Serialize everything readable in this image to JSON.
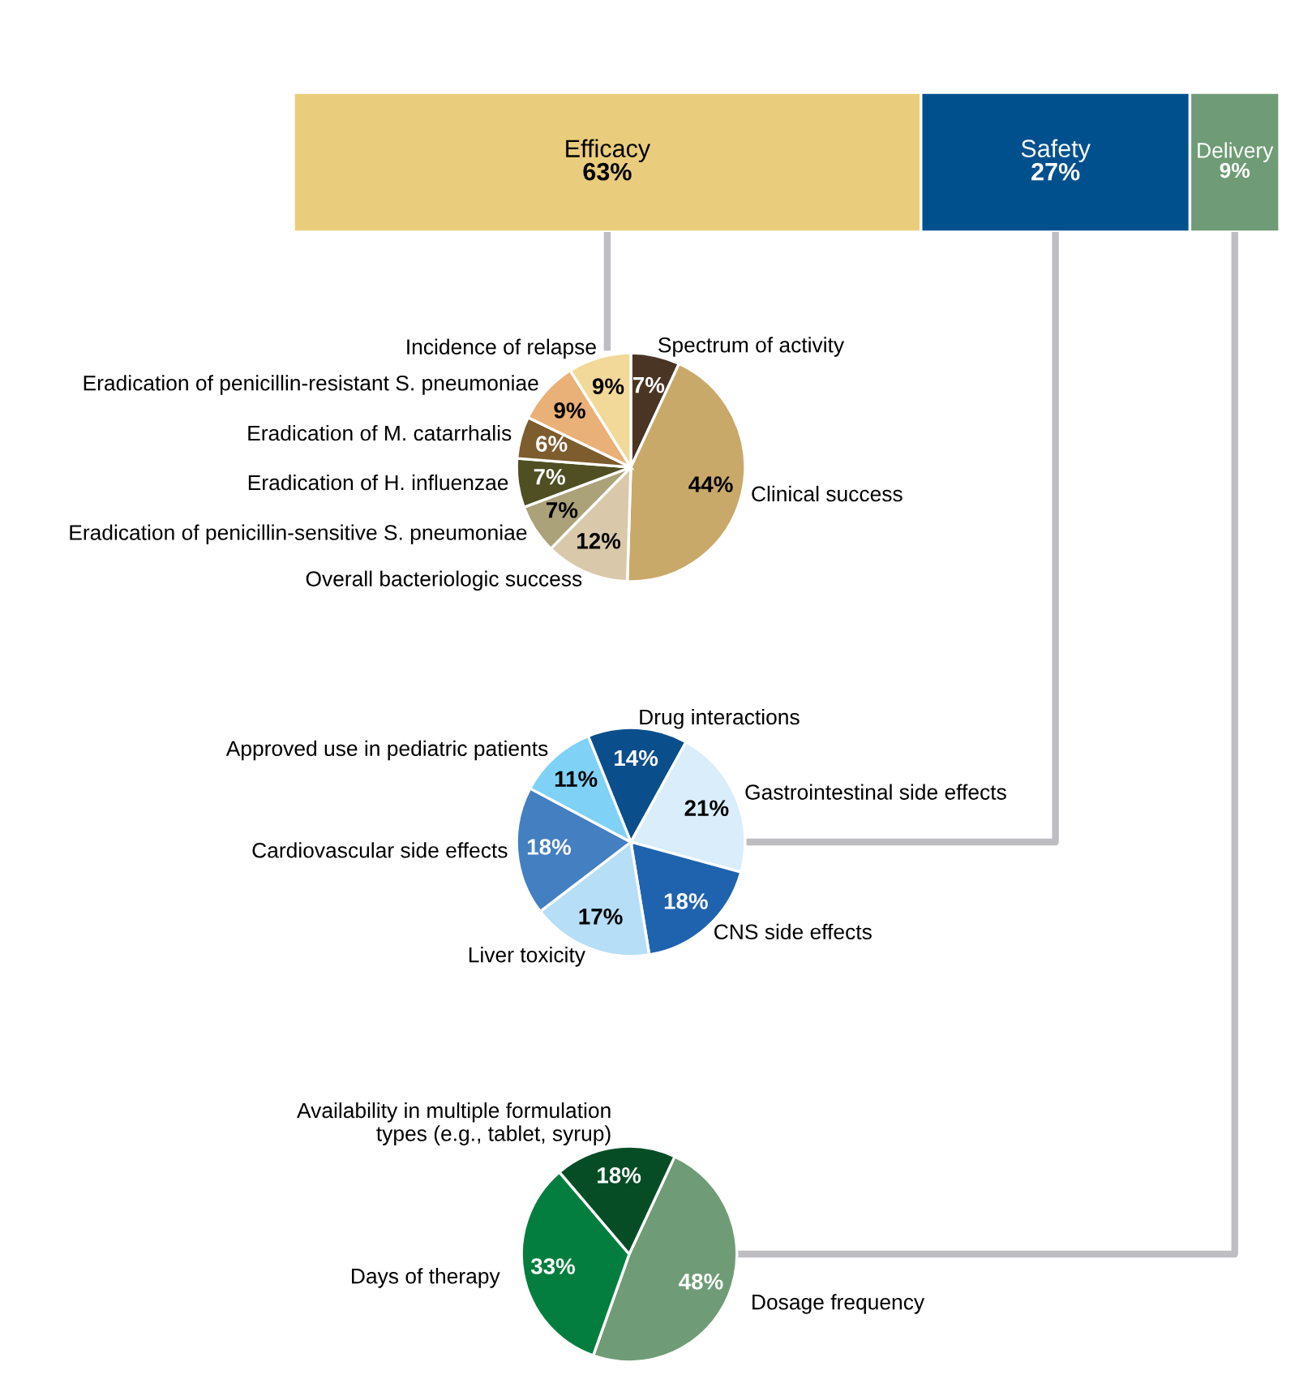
{
  "chart_data": [
    {
      "type": "bar",
      "orientation": "horizontal",
      "stacked": true,
      "categories": [
        null
      ],
      "tick_labels": false,
      "series": [
        {
          "name": "Efficacy",
          "color": "#eacd7c",
          "values": [
            63
          ],
          "value_labels": [
            "63%"
          ]
        },
        {
          "name": "Safety",
          "color": "#00508e",
          "values": [
            27
          ],
          "value_labels": [
            "27%"
          ]
        },
        {
          "name": "Delivery",
          "color": "#6f9c76",
          "values": [
            9
          ],
          "value_labels": [
            "9%"
          ]
        }
      ]
    },
    {
      "type": "pie",
      "categories": [
        "Spectrum of activity",
        "Clinical success",
        "Overall bacteriologic success",
        "Eradication of penicillin-sensitive S. pneumoniae",
        "Eradication of H. influenzae",
        "Eradication of M. catarrhalis",
        "Eradication of penicillin-resistant S. pneumoniae",
        "Incidence of relapse"
      ],
      "values": [
        7,
        44,
        12,
        7,
        7,
        6,
        9,
        9
      ],
      "value_labels": [
        "7%",
        "44%",
        "12%",
        "7%",
        "7%",
        "6%",
        "9%",
        "9%"
      ],
      "colors": [
        "#4a3424",
        "#c8a96a",
        "#d9c9aa",
        "#aba27a",
        "#4f4f23",
        "#7d5c2e",
        "#e9b077",
        "#f2d99a"
      ]
    },
    {
      "type": "pie",
      "categories": [
        "Drug interactions",
        "Gastrointestinal side effects",
        "CNS side effects",
        "Liver toxicity",
        "Cardiovascular side effects",
        "Approved use in pediatric patients"
      ],
      "values": [
        14,
        21,
        18,
        17,
        18,
        11
      ],
      "value_labels": [
        "14%",
        "21%",
        "18%",
        "17%",
        "18%",
        "11%"
      ],
      "colors": [
        "#0b4e8c",
        "#d9edfb",
        "#1f63ae",
        "#b6def6",
        "#437fc1",
        "#7fd1f6"
      ]
    },
    {
      "type": "pie",
      "categories": [
        "Dosage frequency",
        "Days of therapy",
        "Availability in multiple formulation\ntypes (e.g., tablet, syrup)"
      ],
      "values": [
        48,
        33,
        18
      ],
      "value_labels": [
        "48%",
        "33%",
        "18%"
      ],
      "colors": [
        "#6f9c76",
        "#047e3e",
        "#064d26"
      ]
    }
  ]
}
